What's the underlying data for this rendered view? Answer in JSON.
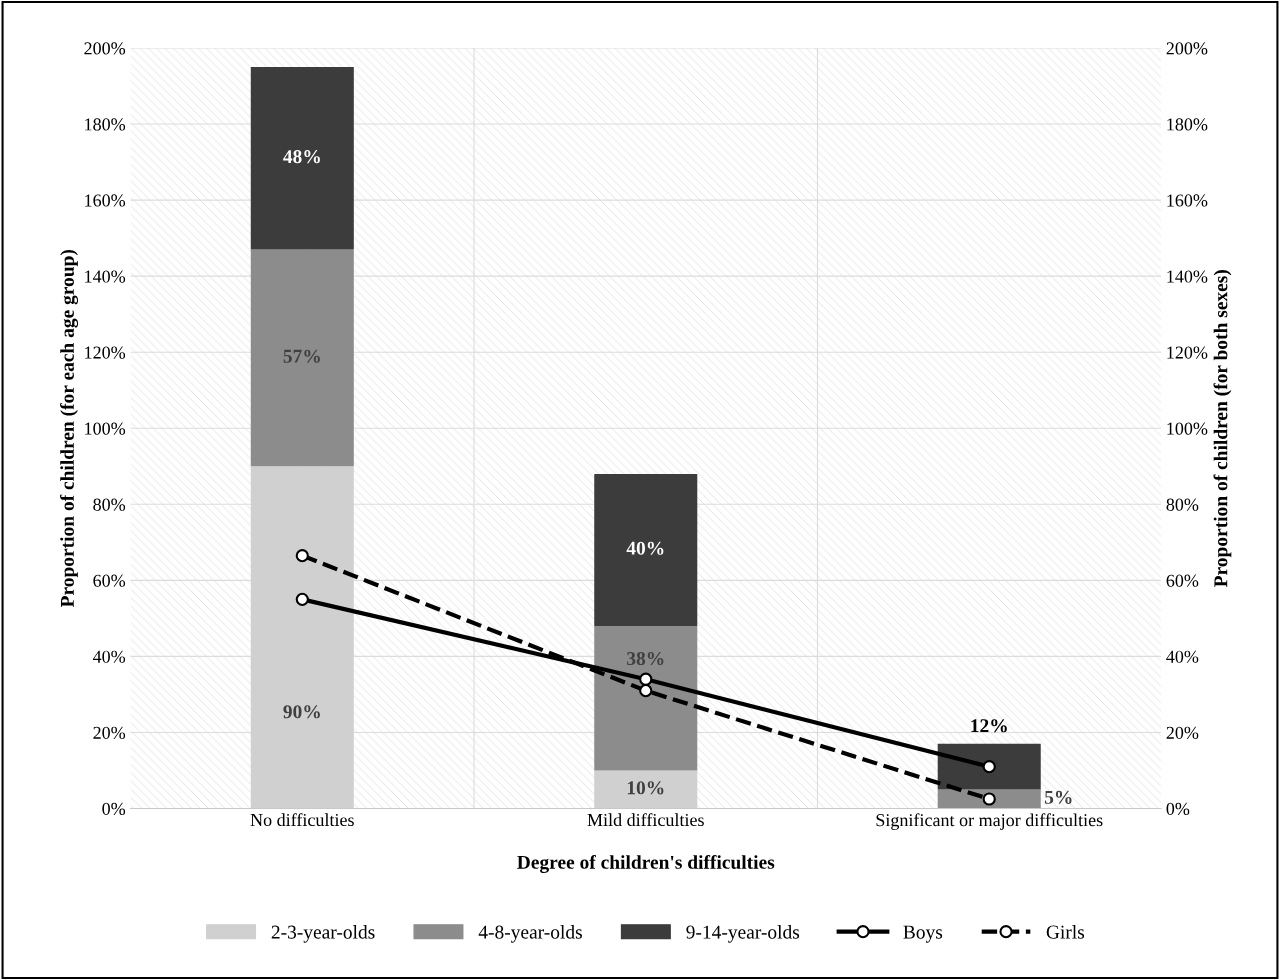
{
  "chart_data": {
    "type": "bar",
    "stacked": true,
    "xlabel": "Degree of children's difficulties",
    "ylabel": "Proportion of children (for each age group)",
    "y2label": "Proportion of children (for both sexes)",
    "categories": [
      "No difficulties",
      "Mild difficulties",
      "Significant or major difficulties"
    ],
    "series": [
      {
        "name": "2-3-year-olds",
        "color": "#d0d0d0",
        "values": [
          90,
          10,
          0
        ],
        "value_labels": [
          "90%",
          "10%",
          null
        ]
      },
      {
        "name": "4-8-year-olds",
        "color": "#8c8c8c",
        "values": [
          57,
          38,
          5
        ],
        "value_labels": [
          "57%",
          "38%",
          "5%"
        ]
      },
      {
        "name": "9-14-year-olds",
        "color": "#3c3c3c",
        "values": [
          48,
          40,
          12
        ],
        "value_labels": [
          "48%",
          "40%",
          "12%"
        ]
      },
      {
        "name": "Boys",
        "type": "line",
        "axis": "y2",
        "color": "#000000",
        "marker": "circle",
        "line_style": "solid",
        "values": [
          55,
          34,
          11
        ]
      },
      {
        "name": "Girls",
        "type": "line",
        "axis": "y2",
        "color": "#000000",
        "marker": "circle",
        "line_style": "dashed",
        "values": [
          66.5,
          31,
          2.5
        ]
      }
    ],
    "ylim": [
      0,
      200
    ],
    "yticks": [
      {
        "value": 0,
        "label": "0%"
      },
      {
        "value": 20,
        "label": "20%"
      },
      {
        "value": 40,
        "label": "40%"
      },
      {
        "value": 60,
        "label": "60%"
      },
      {
        "value": 80,
        "label": "80%"
      },
      {
        "value": 100,
        "label": "100%"
      },
      {
        "value": 120,
        "label": "120%"
      },
      {
        "value": 140,
        "label": "140%"
      },
      {
        "value": 160,
        "label": "160%"
      },
      {
        "value": 180,
        "label": "180%"
      },
      {
        "value": 200,
        "label": "200%"
      }
    ],
    "y2lim": [
      0,
      200
    ],
    "y2ticks": [
      {
        "value": 0,
        "label": "0%"
      },
      {
        "value": 20,
        "label": "20%"
      },
      {
        "value": 40,
        "label": "40%"
      },
      {
        "value": 60,
        "label": "60%"
      },
      {
        "value": 80,
        "label": "80%"
      },
      {
        "value": 100,
        "label": "100%"
      },
      {
        "value": 120,
        "label": "120%"
      },
      {
        "value": 140,
        "label": "140%"
      },
      {
        "value": 160,
        "label": "160%"
      },
      {
        "value": 180,
        "label": "180%"
      },
      {
        "value": 200,
        "label": "200%"
      }
    ],
    "grid": true,
    "legend": "bottom"
  }
}
